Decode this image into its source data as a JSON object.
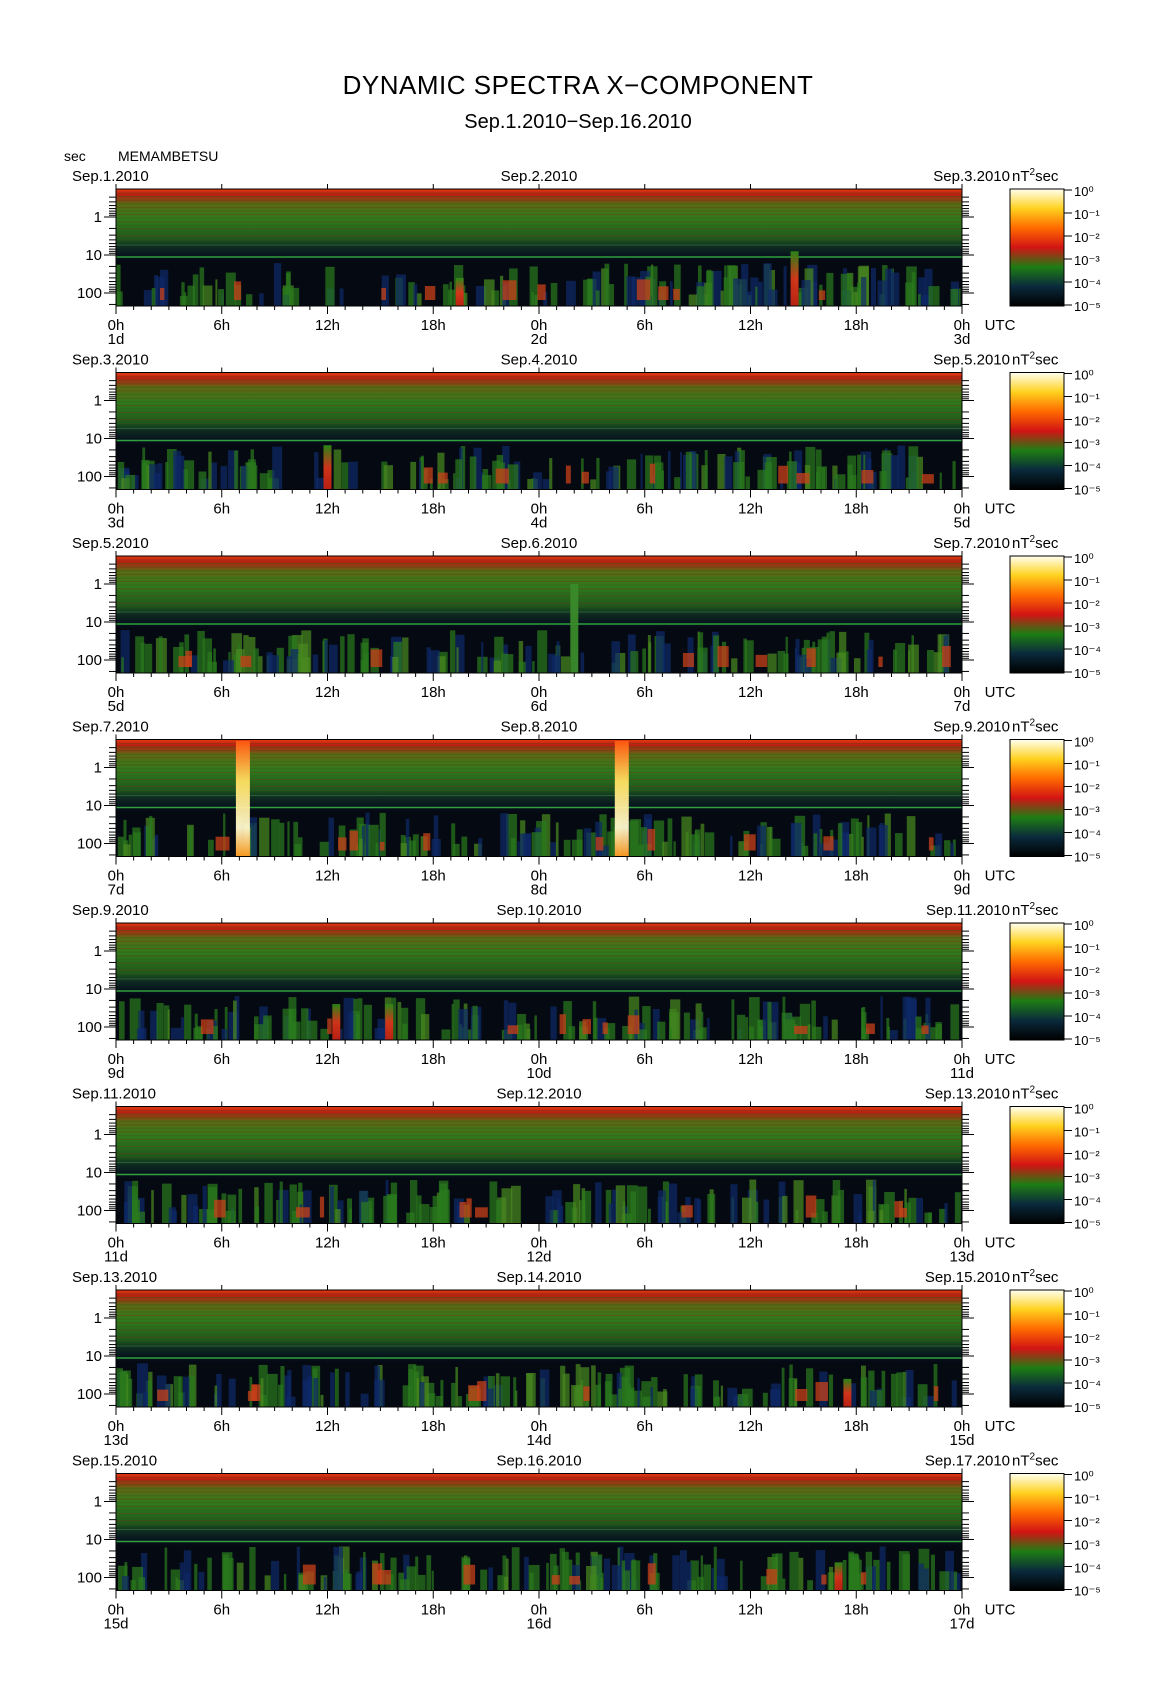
{
  "header": {
    "title": "DYNAMIC SPECTRA X−COMPONENT",
    "subtitle": "Sep.1.2010−Sep.16.2010",
    "unit": "sec",
    "station": "MEMAMBETSU"
  },
  "chart_data": {
    "type": "heatmap",
    "ylabel": "sec",
    "y_ticks": [
      "1",
      "10",
      "100"
    ],
    "y_scale": "log",
    "x_ticks": [
      "0h",
      "6h",
      "12h",
      "18h",
      "0h",
      "6h",
      "12h",
      "18h",
      "0h"
    ],
    "x_unit": "UTC",
    "colorbar": {
      "label": "nT²sec",
      "ticks": [
        "10⁰",
        "10⁻¹",
        "10⁻²",
        "10⁻³",
        "10⁻⁴",
        "10⁻⁵"
      ],
      "colors": [
        "#fffff0",
        "#ffd21e",
        "#ff6a00",
        "#d21414",
        "#1e7d14",
        "#0a2a3c",
        "#000000"
      ]
    },
    "panels": [
      {
        "left_date": "Sep.1.2010",
        "mid_date": "Sep.2.2010",
        "right_date": "Sep.3.2010",
        "day_labels": [
          "1d",
          "2d",
          "3d"
        ],
        "events": [
          {
            "hour": 38.5,
            "intensity": "red",
            "period_top": 8
          },
          {
            "hour": 19.5,
            "intensity": "red",
            "period_top": 40
          }
        ]
      },
      {
        "left_date": "Sep.3.2010",
        "mid_date": "Sep.4.2010",
        "right_date": "Sep.5.2010",
        "day_labels": [
          "3d",
          "4d",
          "5d"
        ],
        "events": [
          {
            "hour": 12.0,
            "intensity": "red",
            "period_top": 15
          }
        ]
      },
      {
        "left_date": "Sep.5.2010",
        "mid_date": "Sep.6.2010",
        "right_date": "Sep.7.2010",
        "day_labels": [
          "5d",
          "6d",
          "7d"
        ],
        "events": [
          {
            "hour": 26.0,
            "intensity": "green",
            "period_top": 1
          }
        ]
      },
      {
        "left_date": "Sep.7.2010",
        "mid_date": "Sep.8.2010",
        "right_date": "Sep.9.2010",
        "day_labels": [
          "7d",
          "8d",
          "9d"
        ],
        "events": [
          {
            "hour": 7.2,
            "intensity": "yellow",
            "period_top": 0.2
          },
          {
            "hour": 28.7,
            "intensity": "yellow",
            "period_top": 0.2
          }
        ]
      },
      {
        "left_date": "Sep.9.2010",
        "mid_date": "Sep.10.2010",
        "right_date": "Sep.11.2010",
        "day_labels": [
          "9d",
          "10d",
          "11d"
        ],
        "events": [
          {
            "hour": 12.5,
            "intensity": "red",
            "period_top": 25
          },
          {
            "hour": 15.5,
            "intensity": "red",
            "period_top": 25
          }
        ]
      },
      {
        "left_date": "Sep.11.2010",
        "mid_date": "Sep.12.2010",
        "right_date": "Sep.13.2010",
        "day_labels": [
          "11d",
          "12d",
          "13d"
        ],
        "events": []
      },
      {
        "left_date": "Sep.13.2010",
        "mid_date": "Sep.14.2010",
        "right_date": "Sep.15.2010",
        "day_labels": [
          "13d",
          "14d",
          "15d"
        ],
        "events": [
          {
            "hour": 41.5,
            "intensity": "red",
            "period_top": 40
          }
        ]
      },
      {
        "left_date": "Sep.15.2010",
        "mid_date": "Sep.16.2010",
        "right_date": "Sep.17.2010",
        "day_labels": [
          "15d",
          "16d",
          "17d"
        ],
        "events": [
          {
            "hour": 41.0,
            "intensity": "red",
            "period_top": 40
          }
        ]
      }
    ]
  }
}
